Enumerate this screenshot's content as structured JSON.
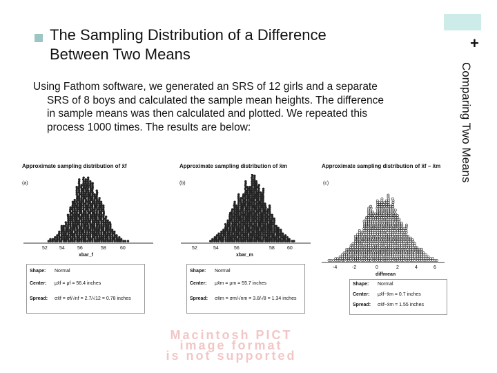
{
  "slide": {
    "bullet_title": "The Sampling Distribution of a Difference Between Two Means",
    "title_line1": "The Sampling Distribution of a Difference",
    "title_line2": "Between Two Means",
    "side_title": "Comparing Two Means",
    "plus": "+",
    "body_lines": [
      "Using Fathom software, we generated an SRS of 12 girls and a separate",
      "SRS of 8 boys and calculated the sample mean heights. The difference",
      "in sample means was then calculated and plotted.  We repeated this",
      "process 1000 times.  The results are below:"
    ],
    "accent_color": "#ccebe9"
  },
  "panels": [
    {
      "title": "Approximate sampling distribution of x̄f",
      "label": "(a)",
      "xlabel": "xbar_f",
      "ticks": [
        "52",
        "54",
        "56",
        "58",
        "60"
      ],
      "shape_label": "Shape:",
      "shape": "Normal",
      "center_label": "Center:",
      "center": "μx̄f = μf = 56.4 inches",
      "spread_label": "Spread:",
      "spread": "σx̄f = σf/√nf = 2.7/√12 = 0.78 inches"
    },
    {
      "title": "Approximate sampling distribution of x̄m",
      "label": "(b)",
      "xlabel": "xbar_m",
      "ticks": [
        "52",
        "54",
        "56",
        "58",
        "60"
      ],
      "shape_label": "Shape:",
      "shape": "Normal",
      "center_label": "Center:",
      "center": "μx̄m = μm = 55.7 inches",
      "spread_label": "Spread:",
      "spread": "σx̄m = σm/√nm = 3.8/√8 = 1.34 inches"
    },
    {
      "title": "Approximate sampling distribution of x̄f − x̄m",
      "label": "(c)",
      "xlabel": "diffmean",
      "ticks": [
        "-4",
        "-2",
        "0",
        "2",
        "4",
        "6"
      ],
      "shape_label": "Shape:",
      "shape": "Normal",
      "center_label": "Center:",
      "center": "μx̄f−x̄m = 0.7 inches",
      "spread_label": "Spread:",
      "spread": "σx̄f−x̄m = 1.55 inches"
    }
  ],
  "placeholder": {
    "line1": "Macintosh PICT",
    "line2": "image format",
    "line3": "is not supported"
  }
}
